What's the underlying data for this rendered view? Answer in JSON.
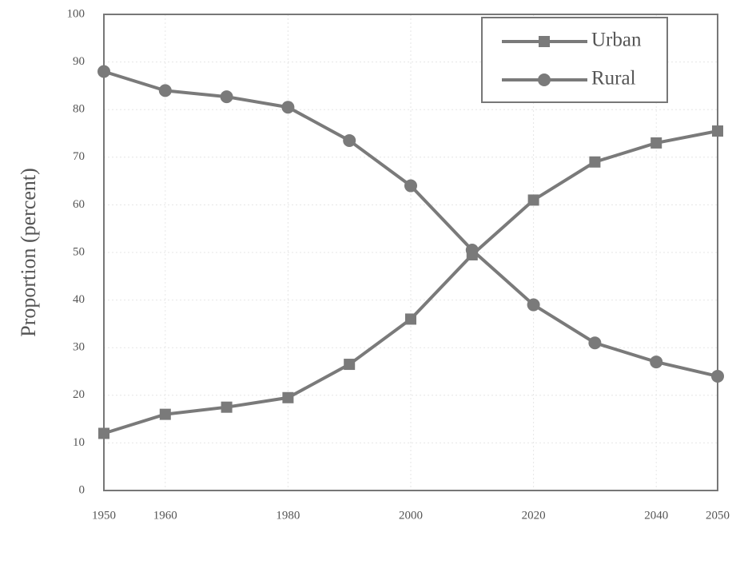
{
  "chart_data": {
    "type": "line",
    "y_label": "Proportion (percent)",
    "x": [
      1950,
      1960,
      1970,
      1980,
      1990,
      2000,
      2010,
      2020,
      2030,
      2040,
      2050
    ],
    "series": [
      {
        "name": "Urban",
        "color": "#7a7a7a",
        "marker": "square",
        "values": [
          12,
          16,
          17.5,
          19.5,
          26.5,
          36,
          49.5,
          61,
          69,
          73,
          75.5
        ]
      },
      {
        "name": "Rural",
        "color": "#7a7a7a",
        "marker": "circle",
        "values": [
          88,
          84,
          82.7,
          80.5,
          73.5,
          64,
          50.5,
          39,
          31,
          27,
          24
        ]
      }
    ],
    "xlim": [
      1950,
      2050
    ],
    "xticks": [
      1950,
      1960,
      1980,
      2000,
      2020,
      2040,
      2050
    ],
    "ylim": [
      0,
      100
    ],
    "yticks": [
      0,
      10,
      20,
      30,
      40,
      50,
      60,
      70,
      80,
      90,
      100
    ],
    "grid": true,
    "legend": "upper right"
  }
}
